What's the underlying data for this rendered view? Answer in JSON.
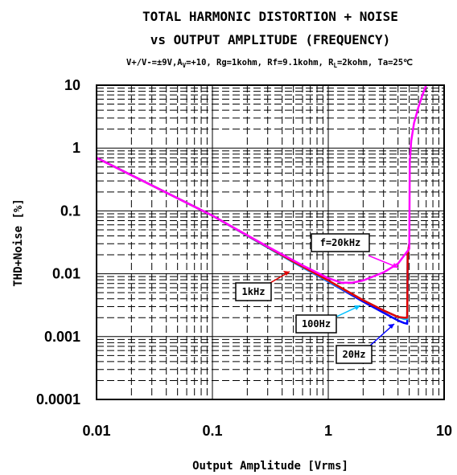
{
  "chart_data": {
    "type": "line",
    "title_line1": "TOTAL HARMONIC DISTORTION + NOISE",
    "title_line2": "vs OUTPUT AMPLITUDE (FREQUENCY)",
    "conditions": {
      "prefix": "V+/V-=±9V,A",
      "gain_sub": "V",
      "mid": "=+10, Rg=1kohm, Rf=9.1kohm, R",
      "load_sub": "L",
      "suffix": "=2kohm, Ta=25℃"
    },
    "xlabel": "Output Amplitude [Vrms]",
    "ylabel": "THD+Noise [%]",
    "x_scale": "log",
    "y_scale": "log",
    "xlim": [
      0.01,
      10
    ],
    "ylim": [
      0.0001,
      10
    ],
    "x_tick_labels": [
      "0.01",
      "0.1",
      "1",
      "10"
    ],
    "y_tick_labels": [
      "10",
      "1",
      "0.1",
      "0.01",
      "0.001",
      "0.0001"
    ],
    "grid": true,
    "series": [
      {
        "name": "20Hz",
        "color": "#0000ff",
        "x": [
          0.01,
          0.1,
          0.5,
          1,
          2,
          3,
          4,
          4.5,
          4.8,
          4.85,
          5
        ],
        "y": [
          0.7,
          0.084,
          0.0152,
          0.0075,
          0.0036,
          0.0024,
          0.0018,
          0.00165,
          0.0016,
          0.02,
          0.03
        ]
      },
      {
        "name": "100Hz",
        "color": "#00c0ff",
        "x": [
          0.01,
          0.1,
          0.5,
          1,
          2,
          3,
          4,
          4.5,
          4.8,
          4.85,
          5
        ],
        "y": [
          0.7,
          0.084,
          0.0152,
          0.0076,
          0.0038,
          0.0026,
          0.00205,
          0.0019,
          0.0019,
          0.02,
          0.03
        ]
      },
      {
        "name": "1kHz",
        "color": "#e00000",
        "x": [
          0.01,
          0.1,
          0.5,
          1,
          2,
          3,
          4,
          4.5,
          4.8,
          4.85,
          5
        ],
        "y": [
          0.7,
          0.084,
          0.0155,
          0.0078,
          0.0038,
          0.0026,
          0.00205,
          0.002,
          0.002,
          0.02,
          0.03
        ]
      },
      {
        "name": "f=20kHz",
        "color": "#ff00ff",
        "x": [
          0.01,
          0.1,
          0.3,
          0.6,
          1,
          1.3,
          1.6,
          2,
          3,
          4,
          5,
          5.05,
          5.2,
          5.5,
          6,
          6.5,
          7
        ],
        "y": [
          0.7,
          0.084,
          0.027,
          0.0136,
          0.0085,
          0.0072,
          0.0072,
          0.0078,
          0.0105,
          0.0145,
          0.025,
          0.6,
          1.3,
          2.5,
          4.5,
          7,
          10
        ]
      }
    ],
    "annotations": [
      {
        "text": "f=20kHz",
        "points_to": "f=20kHz"
      },
      {
        "text": "1kHz",
        "points_to": "1kHz"
      },
      {
        "text": "100Hz",
        "points_to": "100Hz"
      },
      {
        "text": "20Hz",
        "points_to": "20Hz"
      }
    ]
  }
}
